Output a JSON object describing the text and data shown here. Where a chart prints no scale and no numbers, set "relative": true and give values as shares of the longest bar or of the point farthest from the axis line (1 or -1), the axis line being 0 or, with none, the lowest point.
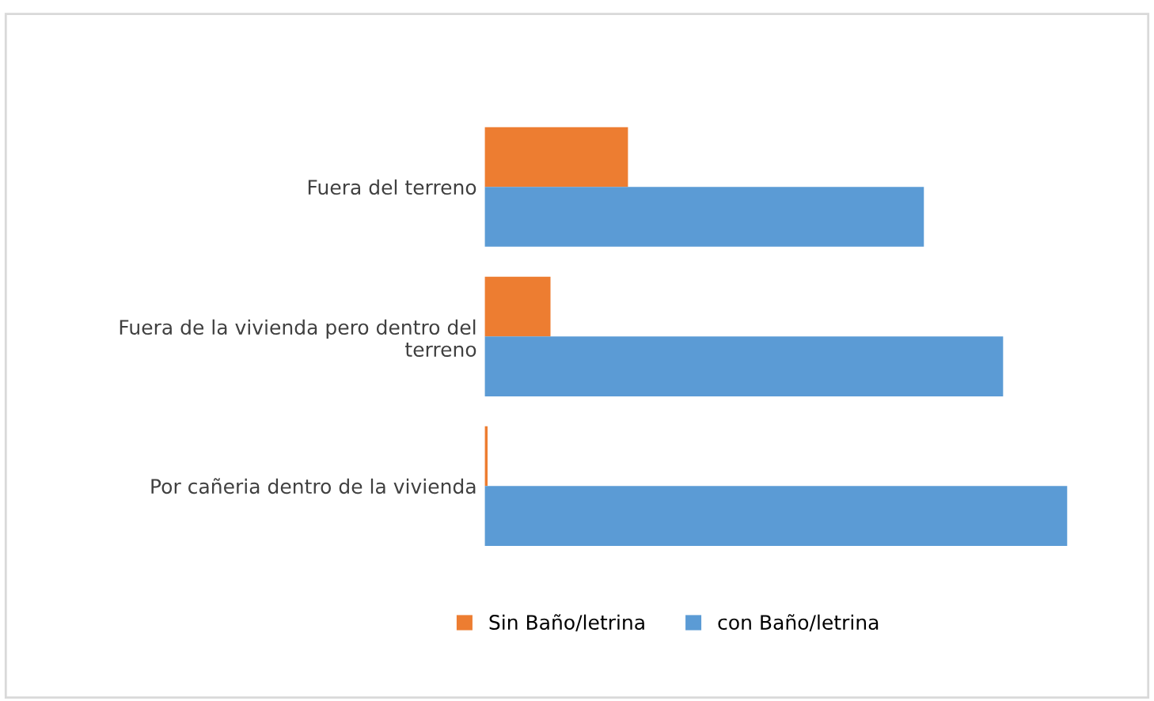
{
  "chart_data": {
    "type": "bar",
    "orientation": "horizontal",
    "relative": true,
    "categories": [
      "Fuera del terreno",
      "Fuera de la vivienda pero dentro del\nterreno",
      "Por cañeria dentro de la vivienda"
    ],
    "series": [
      {
        "name": "Sin Baño/letrina",
        "color": "#ed7d31",
        "values": [
          0.246,
          0.113,
          0.005
        ]
      },
      {
        "name": "con Baño/letrina",
        "color": "#5b9bd5",
        "values": [
          0.754,
          0.89,
          1
        ]
      }
    ],
    "legend": "bottom"
  }
}
